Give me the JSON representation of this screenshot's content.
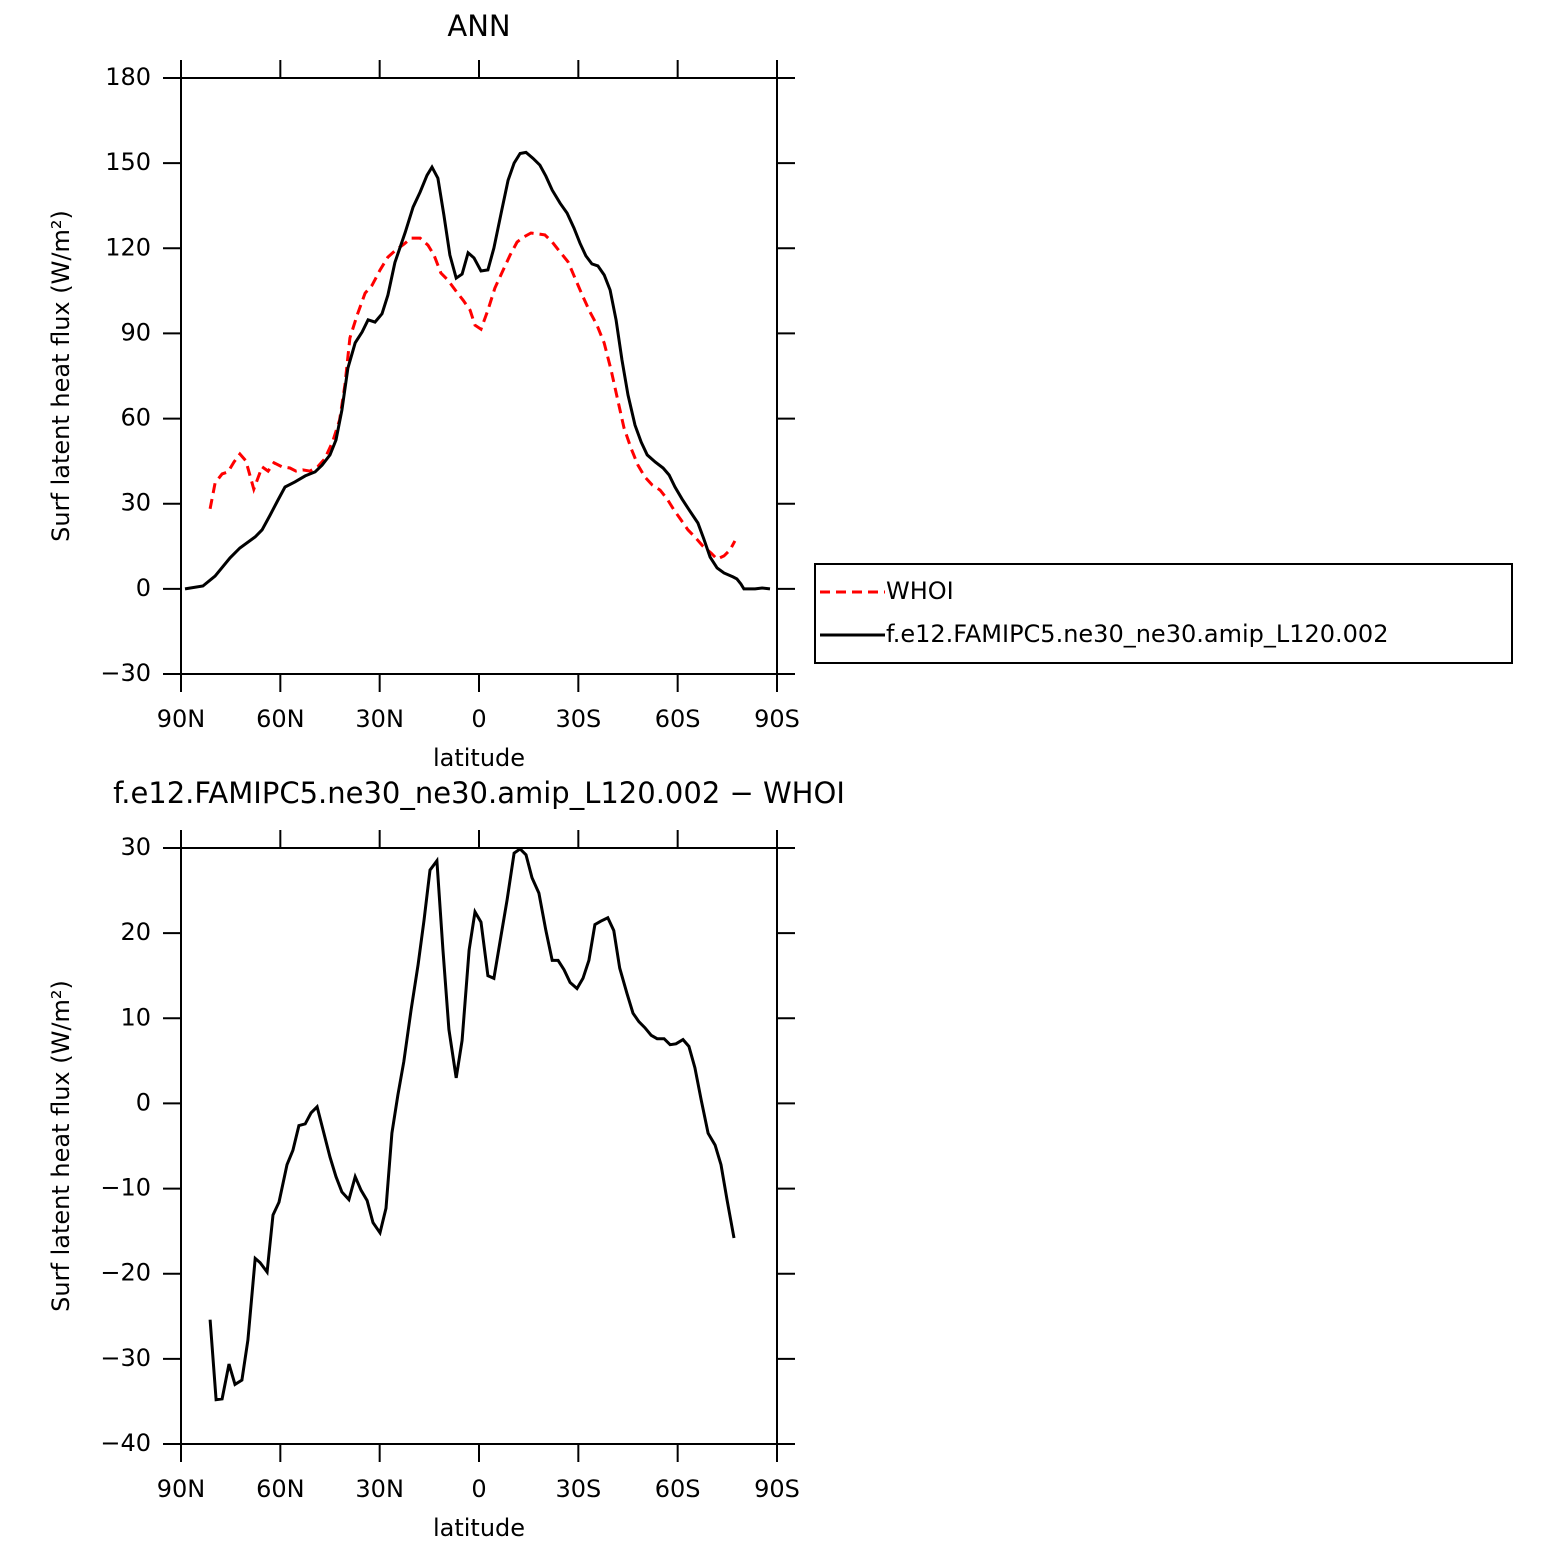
{
  "chart_data": [
    {
      "type": "line",
      "title": "ANN",
      "xlabel": "latitude",
      "ylabel": "Surf latent heat flux (W/m²)",
      "xlim": [
        90,
        -90
      ],
      "ylim": [
        -30,
        180
      ],
      "xticks": [
        {
          "value": 90,
          "label": "90N"
        },
        {
          "value": 60,
          "label": "60N"
        },
        {
          "value": 30,
          "label": "30N"
        },
        0,
        {
          "value": -30,
          "label": "30S"
        },
        {
          "value": -60,
          "label": "60S"
        },
        {
          "value": -90,
          "label": "90S"
        }
      ],
      "yticks": [
        {
          "value": -30,
          "label": "−30"
        },
        0,
        30,
        60,
        90,
        120,
        150,
        180
      ],
      "legend": "right",
      "series": [
        {
          "name": "WHOI",
          "color": "#ff0000",
          "linestyle": "dashed",
          "x": [
            81.2,
            79.7,
            77.6,
            75.8,
            74,
            72.2,
            70.4,
            68,
            65.5,
            63.7,
            61.9,
            59.5,
            57.1,
            55.3,
            53.2,
            51.1,
            48.7,
            46.6,
            44.2,
            42.1,
            40.5,
            39,
            36.8,
            34.4,
            32.3,
            29.9,
            27.5,
            25.1,
            22.6,
            20.5,
            17.8,
            15.4,
            13.6,
            11.5,
            9.4,
            7.2,
            4.8,
            2.7,
            1.2,
            -0.6,
            -2.7,
            -4.8,
            -6.9,
            -9.4,
            -11.5,
            -13.6,
            -15.7,
            -19.9,
            -22.1,
            -24.5,
            -26.9,
            -29,
            -31.4,
            -33.5,
            -35.6,
            -37.8,
            -39.9,
            -41.9,
            -43.8,
            -45.9,
            -48,
            -50.1,
            -52.3,
            -54.7,
            -56.8,
            -58.9,
            -61,
            -63.1,
            -65.5,
            -67.6,
            -70.1,
            -71.9,
            -74,
            -75.8,
            -77.3
          ],
          "values": [
            28.2,
            37.3,
            40.5,
            41.2,
            44.7,
            47.5,
            45.1,
            35.1,
            43,
            41.5,
            44.4,
            43,
            42.6,
            41.5,
            41.9,
            41.5,
            43,
            45.8,
            51.8,
            59.5,
            71.8,
            88.4,
            96.5,
            104.2,
            107,
            112.3,
            116.9,
            119.4,
            121.5,
            123.6,
            123.6,
            121.1,
            117.6,
            111.3,
            108.8,
            105.3,
            101.7,
            98.2,
            92.9,
            91.5,
            98.2,
            106,
            111.3,
            117.6,
            122.2,
            124,
            125.4,
            124.7,
            122.2,
            118.7,
            115.2,
            109.5,
            102.9,
            97.6,
            93,
            86.6,
            77.1,
            66.6,
            56.7,
            49.6,
            43.6,
            39.4,
            36.6,
            34.8,
            31.7,
            27.8,
            24.3,
            20.8,
            17.9,
            15.1,
            12.6,
            10.5,
            11.6,
            13.7,
            16.9
          ]
        },
        {
          "name": "f.e12.FAMIPC5.ne30_ne30.amip_L120.002",
          "color": "#000000",
          "linestyle": "solid",
          "x": [
            88.8,
            83.4,
            79.7,
            75.2,
            72.2,
            67.6,
            65.5,
            63.1,
            60.7,
            58.6,
            55.6,
            52.5,
            49.5,
            47.4,
            45,
            43.2,
            41.4,
            39.6,
            37.4,
            35.3,
            33.5,
            31.4,
            29.3,
            27.5,
            25.4,
            22.3,
            19.9,
            17.8,
            15.7,
            14.2,
            12.4,
            10.6,
            8.8,
            6.9,
            5.1,
            3.3,
            1.5,
            -0.6,
            -2.7,
            -4.5,
            -6.9,
            -8.8,
            -10.6,
            -12.4,
            -14.2,
            -16.3,
            -18.4,
            -20.2,
            -22.1,
            -24.5,
            -26.6,
            -28.7,
            -30.5,
            -32.3,
            -34.1,
            -35.9,
            -37.8,
            -39.6,
            -41.4,
            -43.2,
            -45,
            -47.1,
            -49,
            -50.8,
            -53.2,
            -55.6,
            -57.4,
            -59.2,
            -61.3,
            -63.7,
            -66.1,
            -67.9,
            -69.8,
            -71.9,
            -74,
            -76.7,
            -77.9,
            -79.1,
            -80,
            -83.4,
            -85.5,
            -87.9
          ],
          "values": [
            0,
            1,
            4.5,
            10.9,
            14.4,
            18.3,
            20.8,
            26,
            31.3,
            35.9,
            37.7,
            39.8,
            41.2,
            43.6,
            47.2,
            52.5,
            63,
            77.8,
            86.7,
            90.5,
            94.8,
            94,
            96.9,
            103.5,
            115,
            125.6,
            134.5,
            139.8,
            145.7,
            148.6,
            144.7,
            131.7,
            117.6,
            109.5,
            110.9,
            118.4,
            116.6,
            112,
            112.4,
            120.1,
            133.5,
            144,
            150,
            153.4,
            153.8,
            151.7,
            149.3,
            145.4,
            140.5,
            135.9,
            132.4,
            127.1,
            121.8,
            117.3,
            114.5,
            113.8,
            110.6,
            105.3,
            94.7,
            80.6,
            68.3,
            57.7,
            51.7,
            47.2,
            44.7,
            42.6,
            40.1,
            35.9,
            31.7,
            27.4,
            23.2,
            17.6,
            11.2,
            7.4,
            5.6,
            4.2,
            3.5,
            1.7,
            0,
            0,
            0.3,
            0
          ]
        }
      ]
    },
    {
      "type": "line",
      "title": "f.e12.FAMIPC5.ne30_ne30.amip_L120.002 − WHOI",
      "xlabel": "latitude",
      "ylabel": "Surf latent heat flux (W/m²)",
      "xlim": [
        90,
        -90
      ],
      "ylim": [
        -40,
        30
      ],
      "xticks": [
        {
          "value": 90,
          "label": "90N"
        },
        {
          "value": 60,
          "label": "60N"
        },
        {
          "value": 30,
          "label": "30N"
        },
        0,
        {
          "value": -30,
          "label": "30S"
        },
        {
          "value": -60,
          "label": "60S"
        },
        {
          "value": -90,
          "label": "90S"
        }
      ],
      "yticks": [
        {
          "value": -40,
          "label": "−40"
        },
        {
          "value": -30,
          "label": "−30"
        },
        {
          "value": -20,
          "label": "−20"
        },
        {
          "value": -10,
          "label": "−10"
        },
        0,
        10,
        20,
        30
      ],
      "series": [
        {
          "color": "#000000",
          "linestyle": "solid",
          "x": [
            81.2,
            79.4,
            77.6,
            75.5,
            73.7,
            71.6,
            69.8,
            67.6,
            66.1,
            64,
            62.2,
            60.4,
            58,
            56.2,
            54.4,
            52.5,
            50.7,
            48.9,
            47.1,
            45,
            43.2,
            41.4,
            39.3,
            37.4,
            35.6,
            33.8,
            32,
            29.9,
            28.1,
            26.3,
            24.5,
            22.7,
            20.5,
            18.4,
            16.6,
            14.8,
            12.7,
            10.9,
            9.1,
            6.9,
            5.1,
            3,
            1.2,
            -0.6,
            -2.7,
            -4.5,
            -6.6,
            -8.5,
            -10.6,
            -12.4,
            -14.2,
            -16,
            -18.1,
            -20.2,
            -22.1,
            -23.9,
            -25.7,
            -27.5,
            -29.6,
            -31.4,
            -33.2,
            -35,
            -36.8,
            -38.9,
            -40.7,
            -42.5,
            -44.7,
            -46.5,
            -48.3,
            -50.1,
            -52,
            -53.8,
            -55.9,
            -57.7,
            -59.5,
            -61.6,
            -63.4,
            -65.2,
            -67.1,
            -69.2,
            -71.3,
            -73.1,
            -74.9,
            -77
          ],
          "values": [
            -25.4,
            -34.8,
            -34.7,
            -30.6,
            -33,
            -32.5,
            -27.8,
            -18.2,
            -18.7,
            -19.8,
            -13.1,
            -11.6,
            -7.2,
            -5.5,
            -2.6,
            -2.4,
            -1.1,
            -0.4,
            -3.1,
            -6.3,
            -8.6,
            -10.4,
            -11.3,
            -8.6,
            -10.2,
            -11.4,
            -14,
            -15.2,
            -12.3,
            -3.5,
            1,
            4.9,
            11,
            16.3,
            21.5,
            27.4,
            28.5,
            18.1,
            8.7,
            3,
            7.4,
            18,
            22.5,
            21.3,
            15,
            14.7,
            19.6,
            23.9,
            29.4,
            29.9,
            29.2,
            26.5,
            24.7,
            20.3,
            16.8,
            16.8,
            15.7,
            14.2,
            13.5,
            14.7,
            16.8,
            21,
            21.4,
            21.8,
            20.3,
            15.9,
            12.9,
            10.6,
            9.6,
            8.9,
            8,
            7.6,
            7.6,
            6.9,
            7,
            7.5,
            6.7,
            4.2,
            0.4,
            -3.5,
            -4.9,
            -7.2,
            -11.3,
            -15.8
          ]
        }
      ]
    }
  ]
}
